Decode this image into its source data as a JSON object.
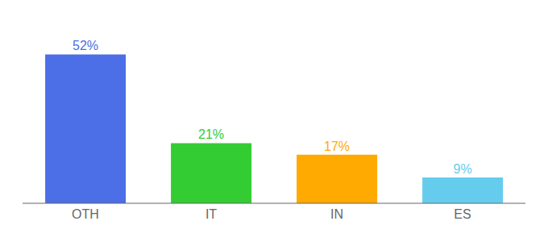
{
  "chart_data": {
    "type": "bar",
    "categories": [
      "OTH",
      "IT",
      "IN",
      "ES"
    ],
    "values": [
      52,
      21,
      17,
      9
    ],
    "value_labels": [
      "52%",
      "21%",
      "17%",
      "9%"
    ],
    "colors": [
      "#4C6EE6",
      "#33CC33",
      "#FFAA00",
      "#66CCEE"
    ],
    "ylim": [
      0,
      62
    ],
    "data_labels": true,
    "tick_labels": "x",
    "grid": false
  }
}
